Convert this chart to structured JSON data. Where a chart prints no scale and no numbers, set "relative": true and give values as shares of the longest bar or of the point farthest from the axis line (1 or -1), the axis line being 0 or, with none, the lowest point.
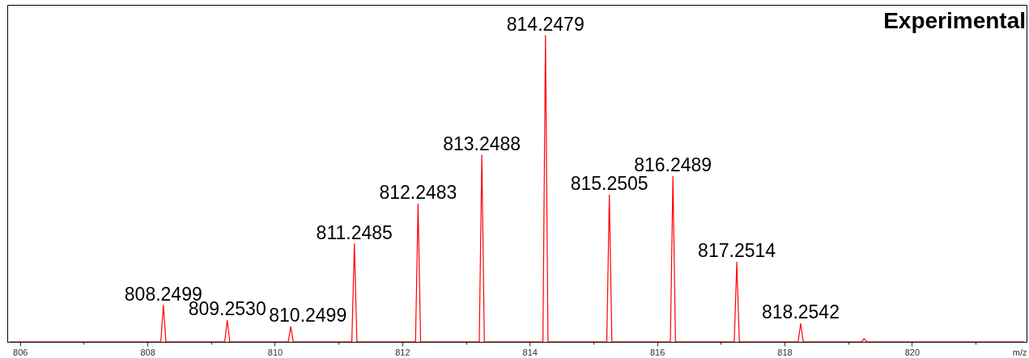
{
  "chart_data": {
    "type": "line",
    "title": "Experimental",
    "xlabel": "m/z",
    "relative": true,
    "xlim": [
      805.8,
      821.8
    ],
    "xticks": [
      806,
      {
        "value": 807,
        "label": null
      },
      808,
      {
        "value": 809,
        "label": null
      },
      810,
      {
        "value": 811,
        "label": null
      },
      812,
      {
        "value": 813,
        "label": null
      },
      814,
      {
        "value": 815,
        "label": null
      },
      816,
      {
        "value": 817,
        "label": null
      },
      818,
      {
        "value": 819,
        "label": null
      },
      820,
      {
        "value": 821,
        "label": null
      }
    ],
    "series": [
      {
        "color": "#ff0000",
        "x": [
          805.85,
          808.2099,
          808.2499,
          808.2899,
          809.213,
          809.253,
          809.293,
          810.2099,
          810.2499,
          810.2899,
          811.2085,
          811.2485,
          811.2885,
          812.2083,
          812.2483,
          812.2883,
          813.2088,
          813.2488,
          813.2888,
          814.2079,
          814.2479,
          814.2879,
          815.2105,
          815.2505,
          815.2905,
          816.2089,
          816.2489,
          816.2889,
          817.2114,
          817.2514,
          817.2914,
          818.2142,
          818.2542,
          818.2942,
          819.21,
          819.25,
          819.29,
          821.75
        ],
        "values": [
          0,
          0,
          0.12,
          0,
          0,
          0.07,
          0,
          0,
          0.05,
          0,
          0,
          0.32,
          0,
          0,
          0.45,
          0,
          0,
          0.61,
          0,
          0,
          1,
          0,
          0,
          0.48,
          0,
          0,
          0.54,
          0,
          0,
          0.26,
          0,
          0,
          0.06,
          0,
          0,
          0.01,
          0,
          0
        ]
      }
    ],
    "annotations": [
      {
        "text": "808.2499",
        "x": 808.2499,
        "y": 0.12
      },
      {
        "text": "809.2530",
        "x": 809.253,
        "y": 0.07
      },
      {
        "text": "810.2499",
        "x": 810.2499,
        "y": 0.05
      },
      {
        "text": "811.2485",
        "x": 811.2485,
        "y": 0.32
      },
      {
        "text": "812.2483",
        "x": 812.2483,
        "y": 0.45
      },
      {
        "text": "813.2488",
        "x": 813.2488,
        "y": 0.61
      },
      {
        "text": "814.2479",
        "x": 814.2479,
        "y": 1
      },
      {
        "text": "815.2505",
        "x": 815.2505,
        "y": 0.48
      },
      {
        "text": "816.2489",
        "x": 816.2489,
        "y": 0.54
      },
      {
        "text": "817.2514",
        "x": 817.2514,
        "y": 0.26
      },
      {
        "text": "818.2542",
        "x": 818.2542,
        "y": 0.06
      }
    ]
  }
}
